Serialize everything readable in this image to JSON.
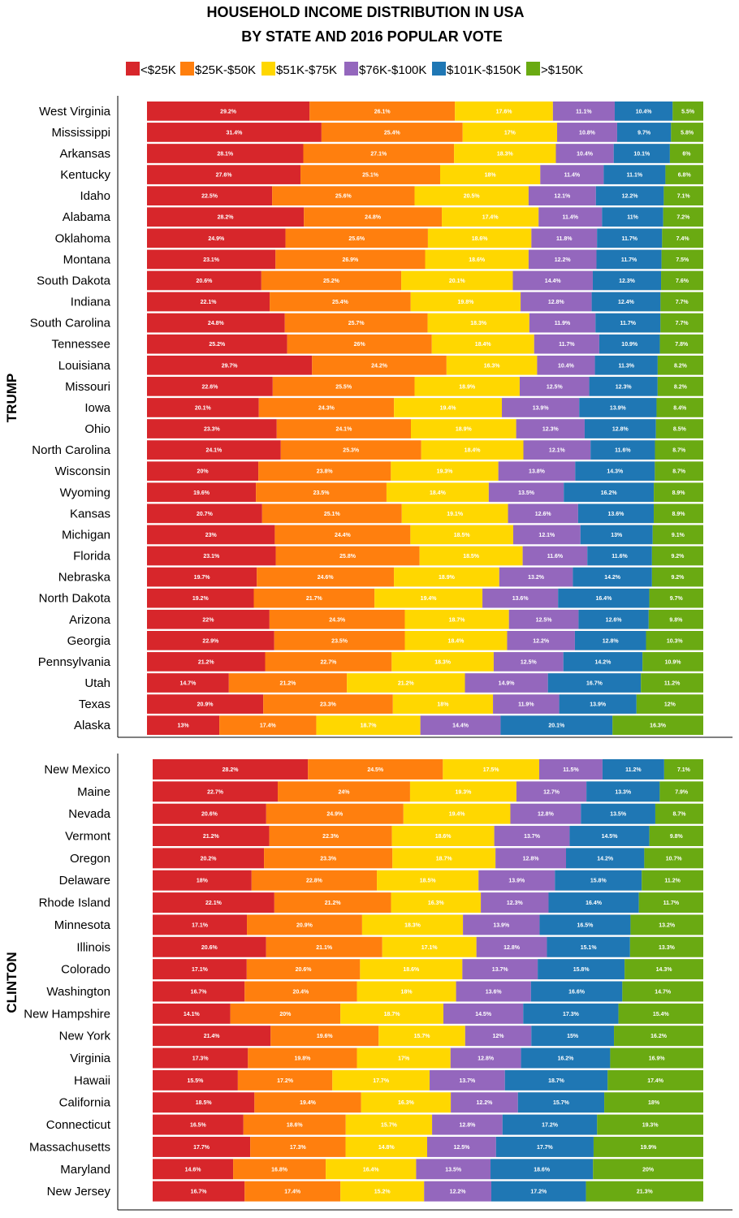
{
  "chart_data": {
    "type": "bar",
    "orientation": "horizontal",
    "stacked": true,
    "title_lines": [
      "HOUSEHOLD INCOME DISTRIBUTION IN USA",
      "BY STATE AND 2016 POPULAR VOTE"
    ],
    "legend_position": "top",
    "series": [
      {
        "name": "<$25K",
        "color": "#d7262b"
      },
      {
        "name": "$25K-$50K",
        "color": "#ff7f0e"
      },
      {
        "name": "$51K-$75K",
        "color": "#ffd700"
      },
      {
        "name": "$76K-$100K",
        "color": "#9467bd"
      },
      {
        "name": "$101K-$150K",
        "color": "#1f77b4"
      },
      {
        "name": ">$150K",
        "color": "#6aaa12"
      }
    ],
    "panels": [
      {
        "label": "TRUMP",
        "rows": [
          {
            "state": "West Virginia",
            "values": [
              29.2,
              26.1,
              17.6,
              11.1,
              10.4,
              5.5
            ]
          },
          {
            "state": "Mississippi",
            "values": [
              31.4,
              25.4,
              17,
              10.8,
              9.7,
              5.8
            ]
          },
          {
            "state": "Arkansas",
            "values": [
              28.1,
              27.1,
              18.3,
              10.4,
              10.1,
              6
            ]
          },
          {
            "state": "Kentucky",
            "values": [
              27.6,
              25.1,
              18,
              11.4,
              11.1,
              6.8
            ]
          },
          {
            "state": "Idaho",
            "values": [
              22.5,
              25.6,
              20.5,
              12.1,
              12.2,
              7.1
            ]
          },
          {
            "state": "Alabama",
            "values": [
              28.2,
              24.8,
              17.4,
              11.4,
              11,
              7.2
            ]
          },
          {
            "state": "Oklahoma",
            "values": [
              24.9,
              25.6,
              18.6,
              11.8,
              11.7,
              7.4
            ]
          },
          {
            "state": "Montana",
            "values": [
              23.1,
              26.9,
              18.6,
              12.2,
              11.7,
              7.5
            ]
          },
          {
            "state": "South Dakota",
            "values": [
              20.6,
              25.2,
              20.1,
              14.4,
              12.3,
              7.6
            ]
          },
          {
            "state": "Indiana",
            "values": [
              22.1,
              25.4,
              19.8,
              12.8,
              12.4,
              7.7
            ]
          },
          {
            "state": "South Carolina",
            "values": [
              24.8,
              25.7,
              18.3,
              11.9,
              11.7,
              7.7
            ]
          },
          {
            "state": "Tennessee",
            "values": [
              25.2,
              26,
              18.4,
              11.7,
              10.9,
              7.8
            ]
          },
          {
            "state": "Louisiana",
            "values": [
              29.7,
              24.2,
              16.3,
              10.4,
              11.3,
              8.2
            ]
          },
          {
            "state": "Missouri",
            "values": [
              22.6,
              25.5,
              18.9,
              12.5,
              12.3,
              8.2
            ]
          },
          {
            "state": "Iowa",
            "values": [
              20.1,
              24.3,
              19.4,
              13.9,
              13.9,
              8.4
            ]
          },
          {
            "state": "Ohio",
            "values": [
              23.3,
              24.1,
              18.9,
              12.3,
              12.8,
              8.5
            ]
          },
          {
            "state": "North Carolina",
            "values": [
              24.1,
              25.3,
              18.4,
              12.1,
              11.6,
              8.7
            ]
          },
          {
            "state": "Wisconsin",
            "values": [
              20,
              23.8,
              19.3,
              13.8,
              14.3,
              8.7
            ]
          },
          {
            "state": "Wyoming",
            "values": [
              19.6,
              23.5,
              18.4,
              13.5,
              16.2,
              8.9
            ]
          },
          {
            "state": "Kansas",
            "values": [
              20.7,
              25.1,
              19.1,
              12.6,
              13.6,
              8.9
            ]
          },
          {
            "state": "Michigan",
            "values": [
              23,
              24.4,
              18.5,
              12.1,
              13,
              9.1
            ]
          },
          {
            "state": "Florida",
            "values": [
              23.1,
              25.8,
              18.5,
              11.6,
              11.6,
              9.2
            ]
          },
          {
            "state": "Nebraska",
            "values": [
              19.7,
              24.6,
              18.9,
              13.2,
              14.2,
              9.2
            ]
          },
          {
            "state": "North Dakota",
            "values": [
              19.2,
              21.7,
              19.4,
              13.6,
              16.4,
              9.7
            ]
          },
          {
            "state": "Arizona",
            "values": [
              22,
              24.3,
              18.7,
              12.5,
              12.6,
              9.8
            ]
          },
          {
            "state": "Georgia",
            "values": [
              22.9,
              23.5,
              18.4,
              12.2,
              12.8,
              10.3
            ]
          },
          {
            "state": "Pennsylvania",
            "values": [
              21.2,
              22.7,
              18.3,
              12.5,
              14.2,
              10.9
            ]
          },
          {
            "state": "Utah",
            "values": [
              14.7,
              21.2,
              21.2,
              14.9,
              16.7,
              11.2
            ]
          },
          {
            "state": "Texas",
            "values": [
              20.9,
              23.3,
              18,
              11.9,
              13.9,
              12
            ]
          },
          {
            "state": "Alaska",
            "values": [
              13,
              17.4,
              18.7,
              14.4,
              20.1,
              16.3
            ]
          }
        ]
      },
      {
        "label": "CLINTON",
        "rows": [
          {
            "state": "New Mexico",
            "values": [
              28.2,
              24.5,
              17.5,
              11.5,
              11.2,
              7.1
            ]
          },
          {
            "state": "Maine",
            "values": [
              22.7,
              24,
              19.3,
              12.7,
              13.3,
              7.9
            ]
          },
          {
            "state": "Nevada",
            "values": [
              20.6,
              24.9,
              19.4,
              12.8,
              13.5,
              8.7
            ]
          },
          {
            "state": "Vermont",
            "values": [
              21.2,
              22.3,
              18.6,
              13.7,
              14.5,
              9.8
            ]
          },
          {
            "state": "Oregon",
            "values": [
              20.2,
              23.3,
              18.7,
              12.8,
              14.2,
              10.7
            ]
          },
          {
            "state": "Delaware",
            "values": [
              18,
              22.8,
              18.5,
              13.9,
              15.8,
              11.2
            ]
          },
          {
            "state": "Rhode Island",
            "values": [
              22.1,
              21.2,
              16.3,
              12.3,
              16.4,
              11.7
            ]
          },
          {
            "state": "Minnesota",
            "values": [
              17.1,
              20.9,
              18.3,
              13.9,
              16.5,
              13.2
            ]
          },
          {
            "state": "Illinois",
            "values": [
              20.6,
              21.1,
              17.1,
              12.8,
              15.1,
              13.3
            ]
          },
          {
            "state": "Colorado",
            "values": [
              17.1,
              20.6,
              18.6,
              13.7,
              15.8,
              14.3
            ]
          },
          {
            "state": "Washington",
            "values": [
              16.7,
              20.4,
              18,
              13.6,
              16.6,
              14.7
            ]
          },
          {
            "state": "New Hampshire",
            "values": [
              14.1,
              20,
              18.7,
              14.5,
              17.3,
              15.4
            ]
          },
          {
            "state": "New York",
            "values": [
              21.4,
              19.6,
              15.7,
              12,
              15,
              16.2
            ]
          },
          {
            "state": "Virginia",
            "values": [
              17.3,
              19.8,
              17,
              12.8,
              16.2,
              16.9
            ]
          },
          {
            "state": "Hawaii",
            "values": [
              15.5,
              17.2,
              17.7,
              13.7,
              18.7,
              17.4
            ]
          },
          {
            "state": "California",
            "values": [
              18.5,
              19.4,
              16.3,
              12.2,
              15.7,
              18
            ]
          },
          {
            "state": "Connecticut",
            "values": [
              16.5,
              18.6,
              15.7,
              12.8,
              17.2,
              19.3
            ]
          },
          {
            "state": "Massachusetts",
            "values": [
              17.7,
              17.3,
              14.8,
              12.5,
              17.7,
              19.9
            ]
          },
          {
            "state": "Maryland",
            "values": [
              14.6,
              16.8,
              16.4,
              13.5,
              18.6,
              20
            ]
          },
          {
            "state": "New Jersey",
            "values": [
              16.7,
              17.4,
              15.2,
              12.2,
              17.2,
              21.3
            ]
          }
        ]
      }
    ]
  }
}
